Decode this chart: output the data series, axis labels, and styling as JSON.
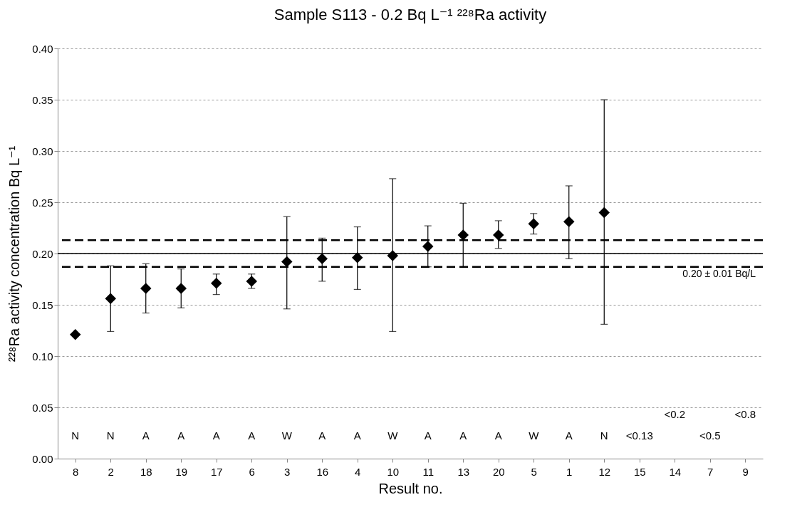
{
  "chart_data": {
    "type": "scatter",
    "title": "Sample S113 - 0.2 Bq L⁻¹ ²²⁸Ra activity",
    "xlabel": "Result no.",
    "ylabel": "²²⁸Ra  activity concentration Bq L⁻¹",
    "categories": [
      "8",
      "2",
      "18",
      "19",
      "17",
      "6",
      "3",
      "16",
      "4",
      "10",
      "11",
      "13",
      "20",
      "5",
      "1",
      "12",
      "15",
      "14",
      "7",
      "9"
    ],
    "series": [
      {
        "color": "#000000",
        "values": [
          0.121,
          0.156,
          0.166,
          0.166,
          0.171,
          0.173,
          0.192,
          0.195,
          0.196,
          0.198,
          0.207,
          0.218,
          0.218,
          0.229,
          0.231,
          0.24,
          null,
          null,
          null,
          null
        ],
        "errors": [
          null,
          [
            0.124,
            0.188
          ],
          [
            0.142,
            0.19
          ],
          [
            0.147,
            0.185
          ],
          [
            0.16,
            0.18
          ],
          [
            0.166,
            0.18
          ],
          [
            0.146,
            0.236
          ],
          [
            0.173,
            0.215
          ],
          [
            0.165,
            0.226
          ],
          [
            0.124,
            0.273
          ],
          [
            0.187,
            0.227
          ],
          [
            0.187,
            0.249
          ],
          [
            0.205,
            0.232
          ],
          [
            0.219,
            0.239
          ],
          [
            0.195,
            0.266
          ],
          [
            0.131,
            0.35
          ],
          null,
          null,
          null,
          null
        ]
      }
    ],
    "marker": "diamond",
    "ylim": [
      0,
      0.4
    ],
    "yticks": [
      {
        "value": 0,
        "label": "0.00"
      },
      {
        "value": 0.05,
        "label": "0.05"
      },
      {
        "value": 0.1,
        "label": "0.10"
      },
      {
        "value": 0.15,
        "label": "0.15"
      },
      {
        "value": 0.2,
        "label": "0.20"
      },
      {
        "value": 0.25,
        "label": "0.25"
      },
      {
        "value": 0.3,
        "label": "0.30"
      },
      {
        "value": 0.35,
        "label": "0.35"
      },
      {
        "value": 0.4,
        "label": "0.40"
      }
    ],
    "grid": "y",
    "ref_lines": [
      {
        "axis": "y",
        "value": 0.2,
        "label": "0.20 ± 0.01 Bq/L",
        "color": "#000000",
        "line_style": "solid"
      },
      {
        "axis": "y",
        "value": 0.213,
        "color": "#000000",
        "line_style": "dashed"
      },
      {
        "axis": "y",
        "value": 0.187,
        "color": "#000000",
        "line_style": "dashed"
      }
    ],
    "annotations": [
      "N",
      "N",
      "A",
      "A",
      "A",
      "A",
      "W",
      "A",
      "A",
      "W",
      "A",
      "A",
      "A",
      "W",
      "A",
      "N",
      "<0.13",
      "<0.2",
      "<0.5",
      "<0.8"
    ]
  }
}
